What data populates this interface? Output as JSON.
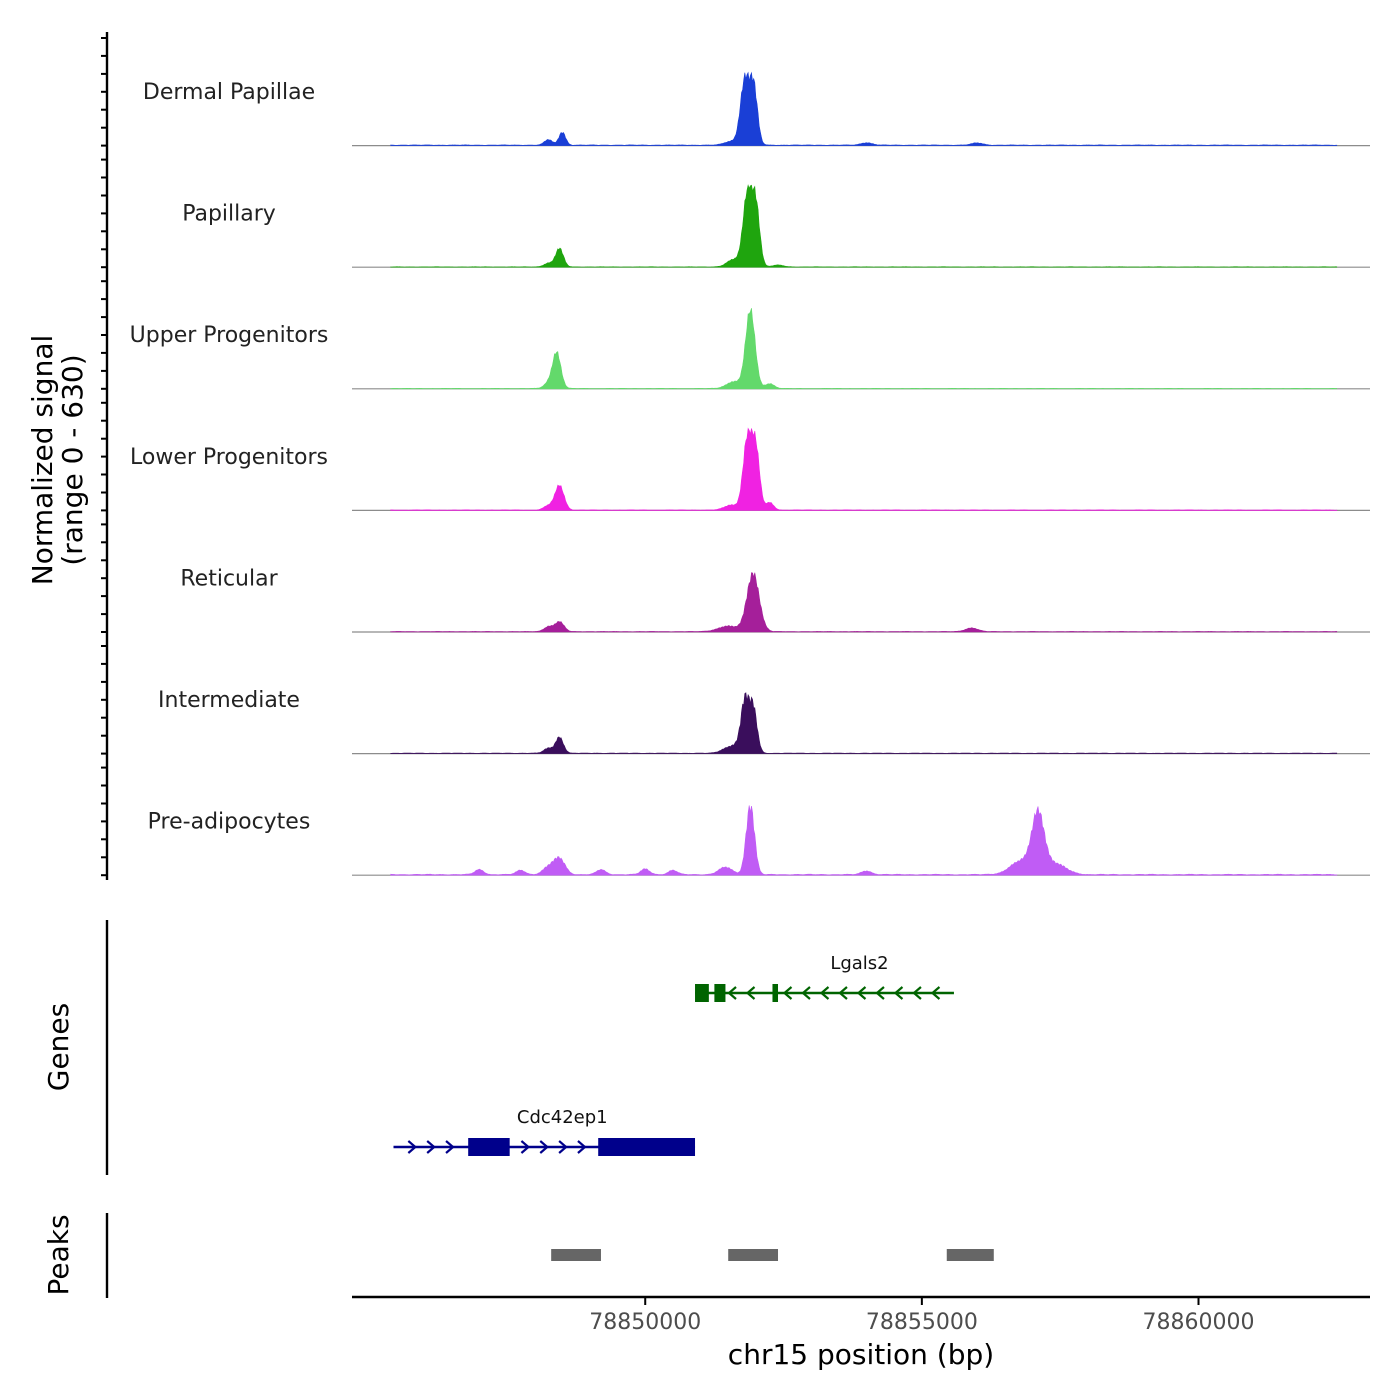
{
  "chart_data": {
    "type": "area",
    "title": "",
    "ylabel_line1": "Normalized signal",
    "ylabel_line2": "(range 0 - 630)",
    "xlabel": "chr15 position (bp)",
    "xlim": [
      78844700,
      78863100
    ],
    "ylim": [
      0,
      630
    ],
    "x_ticks": [
      {
        "value": 78850000,
        "label": "78850000"
      },
      {
        "value": 78855000,
        "label": "78855000"
      },
      {
        "value": 78860000,
        "label": "78860000"
      }
    ],
    "tracks": [
      {
        "name": "Dermal Papillae",
        "color": "#1a3fd6",
        "peaks": [
          [
            78848250,
            45,
            70
          ],
          [
            78848500,
            105,
            60
          ],
          [
            78851800,
            520,
            80
          ],
          [
            78851960,
            460,
            70
          ],
          [
            78851550,
            30,
            120
          ],
          [
            78854000,
            20,
            100
          ],
          [
            78856000,
            18,
            100
          ]
        ],
        "base": 6
      },
      {
        "name": "Papillary",
        "color": "#1fa50e",
        "peaks": [
          [
            78848450,
            150,
            70
          ],
          [
            78848250,
            30,
            80
          ],
          [
            78851850,
            590,
            80
          ],
          [
            78852000,
            480,
            70
          ],
          [
            78851600,
            60,
            120
          ],
          [
            78852400,
            15,
            100
          ]
        ],
        "base": 4
      },
      {
        "name": "Upper Progenitors",
        "color": "#63d96b",
        "peaks": [
          [
            78848400,
            290,
            75
          ],
          [
            78848250,
            40,
            80
          ],
          [
            78851900,
            630,
            85
          ],
          [
            78851600,
            55,
            130
          ],
          [
            78852250,
            40,
            80
          ]
        ],
        "base": 4
      },
      {
        "name": "Lower Progenitors",
        "color": "#f022e2",
        "peaks": [
          [
            78848450,
            200,
            80
          ],
          [
            78848250,
            35,
            80
          ],
          [
            78851850,
            580,
            80
          ],
          [
            78852000,
            470,
            70
          ],
          [
            78851550,
            40,
            120
          ],
          [
            78852250,
            60,
            70
          ]
        ],
        "base": 5
      },
      {
        "name": "Reticular",
        "color": "#a51f9a",
        "peaks": [
          [
            78848450,
            80,
            80
          ],
          [
            78848250,
            40,
            80
          ],
          [
            78851950,
            470,
            110
          ],
          [
            78851500,
            45,
            180
          ],
          [
            78855900,
            30,
            110
          ]
        ],
        "base": 5
      },
      {
        "name": "Intermediate",
        "color": "#3a0e5c",
        "peaks": [
          [
            78848450,
            130,
            70
          ],
          [
            78848250,
            40,
            80
          ],
          [
            78851800,
            420,
            70
          ],
          [
            78851950,
            370,
            70
          ],
          [
            78851500,
            45,
            120
          ],
          [
            78851650,
            40,
            80
          ]
        ],
        "base": 5
      },
      {
        "name": "Pre-adipocytes",
        "color": "#c05cf5",
        "peaks": [
          [
            78848450,
            130,
            100
          ],
          [
            78848250,
            60,
            100
          ],
          [
            78851900,
            560,
            75
          ],
          [
            78851450,
            60,
            120
          ],
          [
            78857100,
            460,
            110
          ],
          [
            78856800,
            110,
            200
          ],
          [
            78857400,
            90,
            200
          ],
          [
            78847000,
            40,
            80
          ],
          [
            78849200,
            40,
            80
          ],
          [
            78850000,
            45,
            80
          ],
          [
            78850500,
            35,
            80
          ],
          [
            78854000,
            30,
            90
          ],
          [
            78847750,
            35,
            80
          ]
        ],
        "base": 8
      }
    ],
    "genes_label": "Genes",
    "genes": [
      {
        "name": "Lgals2",
        "strand": "-",
        "color": "#006400",
        "start": 78850900,
        "end": 78855580,
        "exons": [
          [
            78850900,
            78851150
          ],
          [
            78851250,
            78851450
          ],
          [
            78852300,
            78852400
          ]
        ]
      },
      {
        "name": "Cdc42ep1",
        "strand": "+",
        "color": "#00008b",
        "start": 78845450,
        "end": 78850900,
        "exons": [
          [
            78846800,
            78847550
          ],
          [
            78849150,
            78850900
          ]
        ]
      }
    ],
    "peaks_label": "Peaks",
    "peak_regions": [
      [
        78848300,
        78849200
      ],
      [
        78851500,
        78852400
      ],
      [
        78855450,
        78856300
      ]
    ]
  }
}
